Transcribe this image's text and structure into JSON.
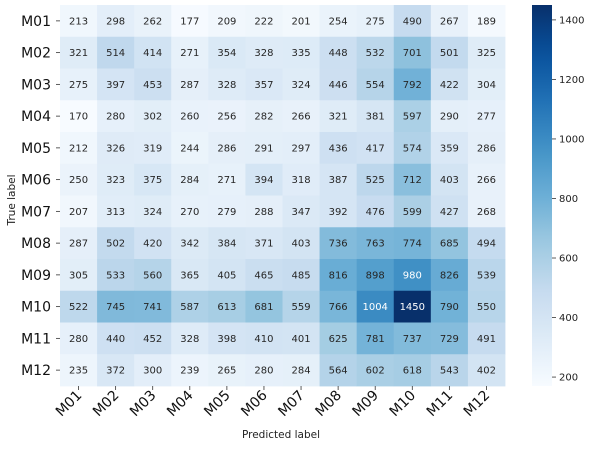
{
  "chart_data": {
    "type": "heatmap",
    "title": "",
    "xlabel": "Predicted label",
    "ylabel": "True label",
    "x_categories": [
      "M01",
      "M02",
      "M03",
      "M04",
      "M05",
      "M06",
      "M07",
      "M08",
      "M09",
      "M10",
      "M11",
      "M12"
    ],
    "y_categories": [
      "M01",
      "M02",
      "M03",
      "M04",
      "M05",
      "M06",
      "M07",
      "M08",
      "M09",
      "M10",
      "M11",
      "M12"
    ],
    "values": [
      [
        213,
        298,
        262,
        177,
        209,
        222,
        201,
        254,
        275,
        490,
        267,
        189
      ],
      [
        321,
        514,
        414,
        271,
        354,
        328,
        335,
        448,
        532,
        701,
        501,
        325
      ],
      [
        275,
        397,
        453,
        287,
        328,
        357,
        324,
        446,
        554,
        792,
        422,
        304
      ],
      [
        170,
        280,
        302,
        260,
        256,
        282,
        266,
        321,
        381,
        597,
        290,
        277
      ],
      [
        212,
        326,
        319,
        244,
        286,
        291,
        297,
        436,
        417,
        574,
        359,
        286
      ],
      [
        250,
        323,
        375,
        284,
        271,
        394,
        318,
        387,
        525,
        712,
        403,
        266
      ],
      [
        207,
        313,
        324,
        270,
        279,
        288,
        347,
        392,
        476,
        599,
        427,
        268
      ],
      [
        287,
        502,
        420,
        342,
        384,
        371,
        403,
        736,
        763,
        774,
        685,
        494
      ],
      [
        305,
        533,
        560,
        365,
        405,
        465,
        485,
        816,
        898,
        980,
        826,
        539
      ],
      [
        522,
        745,
        741,
        587,
        613,
        681,
        559,
        766,
        1004,
        1450,
        790,
        550
      ],
      [
        280,
        440,
        452,
        328,
        398,
        410,
        401,
        625,
        781,
        737,
        729,
        491
      ],
      [
        235,
        372,
        300,
        239,
        265,
        280,
        284,
        564,
        602,
        618,
        543,
        402
      ]
    ],
    "colorbar": {
      "ticks": [
        200,
        400,
        600,
        800,
        1000,
        1200,
        1400
      ],
      "range": [
        170,
        1450
      ],
      "colormap": "Blues"
    }
  }
}
